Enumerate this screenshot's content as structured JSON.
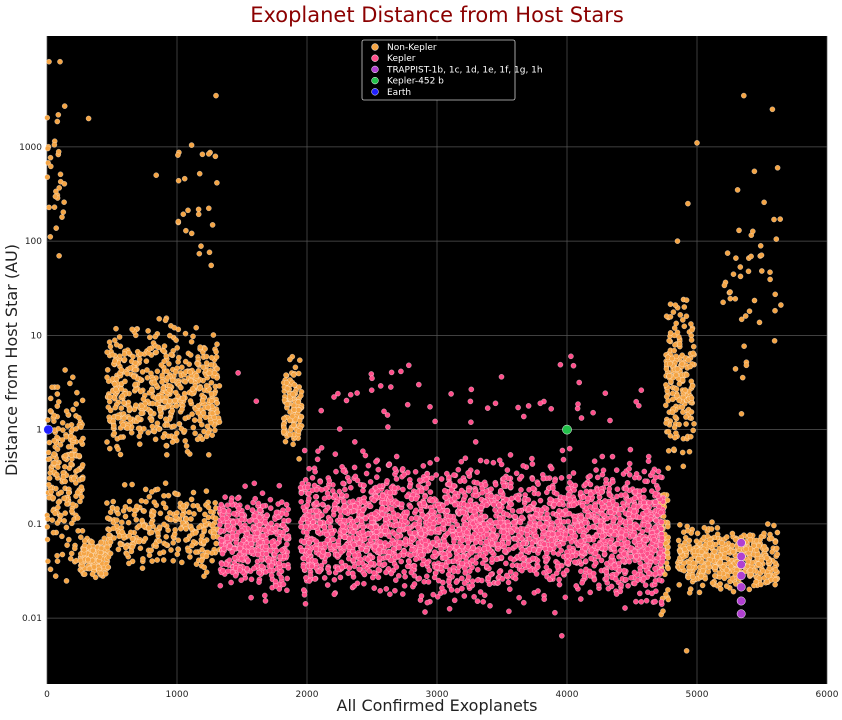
{
  "chart_data": {
    "type": "scatter",
    "title": "Exoplanet Distance from Host Stars",
    "xlabel": "All Confirmed Exoplanets",
    "ylabel": "Distance from Host Star (AU)",
    "xlim": [
      0,
      6000
    ],
    "ylim": [
      0.002,
      15000
    ],
    "yscale": "log",
    "x_ticks": [
      {
        "value": 0,
        "label": "0"
      },
      {
        "value": 1000,
        "label": "1000"
      },
      {
        "value": 2000,
        "label": "2000"
      },
      {
        "value": 3000,
        "label": "3000"
      },
      {
        "value": 4000,
        "label": "4000"
      },
      {
        "value": 5000,
        "label": "5000"
      },
      {
        "value": 6000,
        "label": "6000"
      }
    ],
    "y_ticks": [
      {
        "value": 0.01,
        "label": "0.01"
      },
      {
        "value": 0.1,
        "label": "0.1"
      },
      {
        "value": 1,
        "label": "1"
      },
      {
        "value": 10,
        "label": "10"
      },
      {
        "value": 100,
        "label": "100"
      },
      {
        "value": 1000,
        "label": "1000"
      }
    ],
    "grid": true,
    "background": "#000000",
    "legend_position": "top-center",
    "series": [
      {
        "name": "Non-Kepler",
        "color": "#f5a545",
        "clusters": [
          {
            "x": [
              0,
              280
            ],
            "y": [
              0.015,
              8
            ],
            "n": 220
          },
          {
            "x": [
              0,
              140
            ],
            "y": [
              20,
              8000
            ],
            "n": 30
          },
          {
            "x": [
              250,
              480
            ],
            "y": [
              0.025,
              0.08
            ],
            "n": 180
          },
          {
            "x": [
              460,
              1330
            ],
            "y": [
              0.3,
              20
            ],
            "n": 560
          },
          {
            "x": [
              460,
              1330
            ],
            "y": [
              0.02,
              0.4
            ],
            "n": 280
          },
          {
            "x": [
              1000,
              1330
            ],
            "y": [
              20,
              4000
            ],
            "n": 25
          },
          {
            "x": [
              1820,
              1960
            ],
            "y": [
              0.4,
              8
            ],
            "n": 130
          },
          {
            "x": [
              4720,
              4780
            ],
            "y": [
              0.006,
              0.6
            ],
            "n": 60
          },
          {
            "x": [
              4760,
              4980
            ],
            "y": [
              0.3,
              40
            ],
            "n": 200
          },
          {
            "x": [
              4850,
              5620
            ],
            "y": [
              0.015,
              0.12
            ],
            "n": 460
          },
          {
            "x": [
              5200,
              5650
            ],
            "y": [
              0.4,
              3000
            ],
            "n": 45
          }
        ],
        "points": [
          {
            "x": 15,
            "y": 8000
          },
          {
            "x": 100,
            "y": 8000
          },
          {
            "x": 320,
            "y": 2000
          },
          {
            "x": 1300,
            "y": 3500
          },
          {
            "x": 840,
            "y": 500
          },
          {
            "x": 5000,
            "y": 1100
          },
          {
            "x": 4930,
            "y": 250
          },
          {
            "x": 4850,
            "y": 100
          },
          {
            "x": 5360,
            "y": 3500
          },
          {
            "x": 5580,
            "y": 2500
          },
          {
            "x": 5620,
            "y": 600
          },
          {
            "x": 4920,
            "y": 0.0045
          }
        ]
      },
      {
        "name": "Kepler",
        "color": "#ff4f8b",
        "clusters": [
          {
            "x": [
              1330,
              1860
            ],
            "y": [
              0.012,
              0.35
            ],
            "n": 450
          },
          {
            "x": [
              1950,
              4740
            ],
            "y": [
              0.01,
              0.8
            ],
            "n": 2600
          },
          {
            "x": [
              2000,
              4700
            ],
            "y": [
              0.8,
              6
            ],
            "n": 45
          },
          {
            "x": [
              4300,
              4740
            ],
            "y": [
              0.006,
              0.5
            ],
            "n": 90
          }
        ],
        "points": [
          {
            "x": 1610,
            "y": 2
          },
          {
            "x": 1470,
            "y": 4
          },
          {
            "x": 2500,
            "y": 3.5
          },
          {
            "x": 4030,
            "y": 6
          },
          {
            "x": 2860,
            "y": 3
          },
          {
            "x": 3960,
            "y": 0.0065
          }
        ]
      },
      {
        "name": "TRAPPIST-1b, 1c, 1d, 1e, 1f, 1g, 1h",
        "color": "#b03fd0",
        "points": [
          {
            "x": 5340,
            "y": 0.0111
          },
          {
            "x": 5340,
            "y": 0.0152
          },
          {
            "x": 5340,
            "y": 0.0214
          },
          {
            "x": 5340,
            "y": 0.0282
          },
          {
            "x": 5340,
            "y": 0.0371
          },
          {
            "x": 5340,
            "y": 0.0451
          },
          {
            "x": 5340,
            "y": 0.063
          }
        ]
      },
      {
        "name": "Kepler-452 b",
        "color": "#22c04a",
        "points": [
          {
            "x": 4000,
            "y": 1.0
          }
        ]
      },
      {
        "name": "Earth",
        "color": "#2020ff",
        "points": [
          {
            "x": 10,
            "y": 1.0
          }
        ]
      }
    ]
  }
}
